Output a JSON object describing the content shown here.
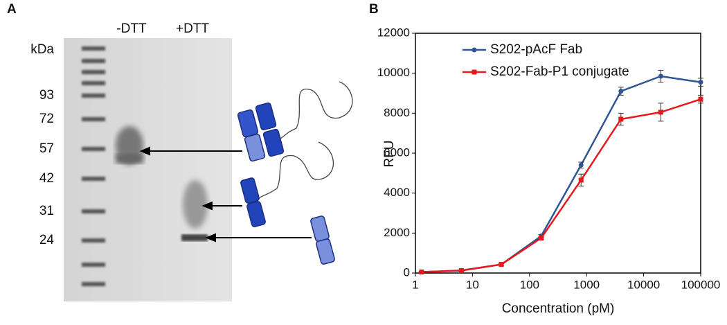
{
  "panel_a": {
    "label": "A",
    "lanes": [
      "-DTT",
      "+DTT"
    ],
    "unit": "kDa",
    "markers": [
      93,
      72,
      57,
      42,
      31,
      24
    ]
  },
  "chart_data": {
    "type": "line",
    "label": "B",
    "x_label": "Concentration (pM)",
    "y_label": "RFU",
    "x": [
      1.28,
      6.4,
      32,
      160,
      800,
      4000,
      20000,
      100000
    ],
    "xlim": [
      1,
      100000
    ],
    "xticks": [
      1,
      10,
      100,
      1000,
      10000,
      100000
    ],
    "xscale": "log",
    "ylim": [
      0,
      12000
    ],
    "yticks": [
      0,
      2000,
      4000,
      6000,
      8000,
      10000,
      12000
    ],
    "legend": "upper left",
    "series": [
      {
        "name": "S202-pAcF Fab",
        "color": "#2f5597",
        "marker": "circle",
        "values": [
          50,
          130,
          430,
          1850,
          5400,
          9100,
          9850,
          9550
        ],
        "errors": [
          30,
          30,
          40,
          80,
          150,
          200,
          300,
          200
        ]
      },
      {
        "name": "S202-Fab-P1 conjugate",
        "color": "#e8191c",
        "marker": "square",
        "values": [
          50,
          120,
          430,
          1750,
          4650,
          7700,
          8050,
          8700
        ],
        "errors": [
          30,
          30,
          40,
          80,
          300,
          300,
          450,
          200
        ]
      }
    ]
  }
}
